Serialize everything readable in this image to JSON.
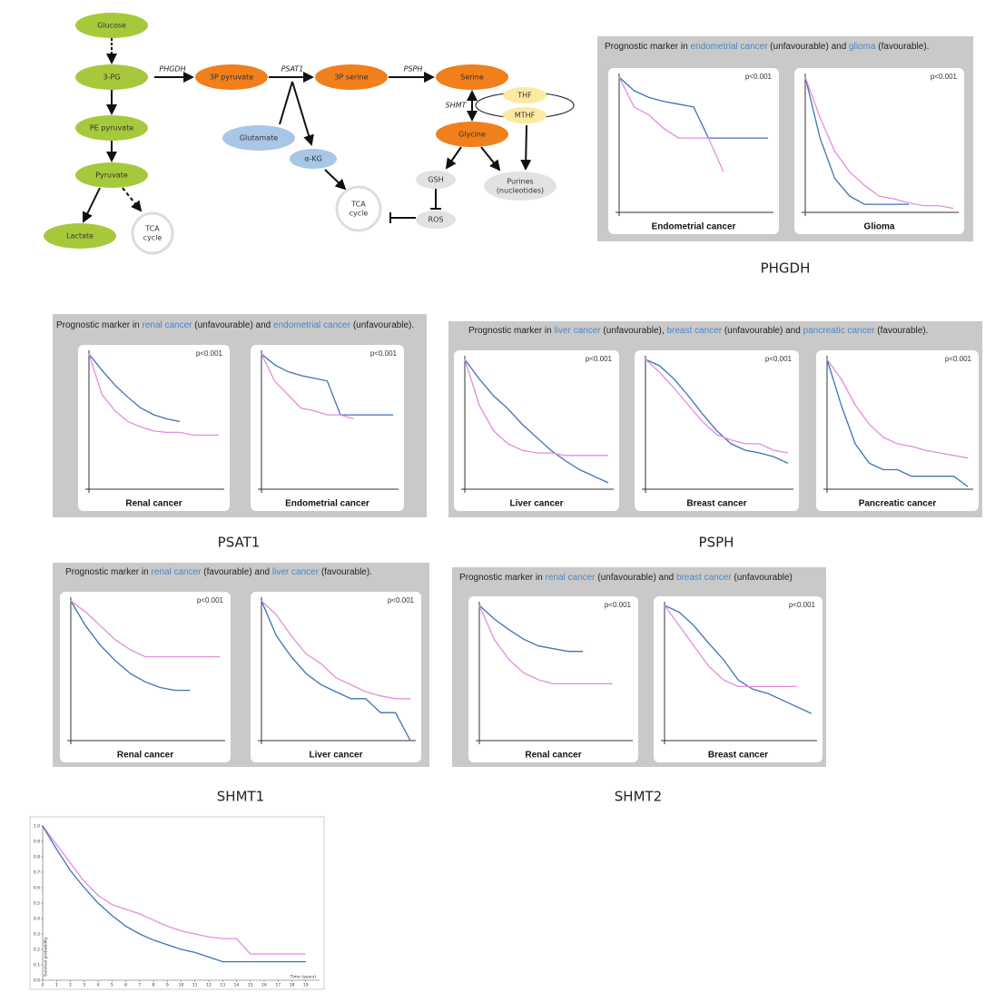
{
  "pathway": {
    "nodes": [
      {
        "label": "Glucose"
      },
      {
        "label": "3-PG"
      },
      {
        "label": "PE pyruvate"
      },
      {
        "label": "Pyruvate"
      },
      {
        "label": "Lactate"
      },
      {
        "label": [
          "TCA",
          "cycle"
        ]
      },
      {
        "label": "3P pyruvate"
      },
      {
        "label": "3P serine"
      },
      {
        "label": "Serine"
      },
      {
        "label": "Glutamate"
      },
      {
        "label": "α-KG"
      },
      {
        "label": "Glycine"
      },
      {
        "label": "THF"
      },
      {
        "label": "MTHF"
      },
      {
        "label": "GSH"
      },
      {
        "label": "ROS"
      },
      {
        "label": [
          "Purines",
          "(nucleotides)"
        ]
      },
      {
        "label": [
          "TCA",
          "cycle"
        ]
      }
    ],
    "enzymes": [
      "PHGDH",
      "PSAT1",
      "PSPH",
      "SHMT"
    ]
  },
  "figures": [
    {
      "caption": "PHGDH",
      "highlight_color": "#4a86c5",
      "header": [
        "Prognostic marker in ",
        "endometrial cancer",
        " (unfavourable) and ",
        "glioma",
        " (favourable)."
      ],
      "panels": [
        {
          "pvalue": "p<0.001",
          "label": "Endometrial cancer",
          "x": [
            0,
            1,
            2,
            3,
            4,
            5,
            6,
            7,
            8,
            9,
            10
          ],
          "series": [
            {
              "color": "#3d72b8",
              "values": [
                1,
                0.9,
                0.85,
                0.82,
                0.8,
                0.78,
                0.55,
                0.55,
                0.55,
                0.55,
                0.55
              ]
            },
            {
              "color": "#e38de0",
              "values": [
                1,
                0.78,
                0.72,
                0.62,
                0.55,
                0.55,
                0.55,
                0.3,
                null,
                null,
                null
              ]
            }
          ]
        },
        {
          "pvalue": "p<0.001",
          "label": "Glioma",
          "x": [
            0,
            1,
            2,
            3,
            4,
            5,
            6,
            7,
            8,
            9,
            10
          ],
          "series": [
            {
              "color": "#3d72b8",
              "values": [
                1,
                0.55,
                0.25,
                0.12,
                0.06,
                0.06,
                0.06,
                0.06,
                null,
                null,
                null
              ]
            },
            {
              "color": "#e38de0",
              "values": [
                1,
                0.7,
                0.45,
                0.3,
                0.2,
                0.12,
                0.1,
                0.07,
                0.05,
                0.05,
                0.03
              ]
            }
          ]
        }
      ]
    },
    {
      "caption": "PSAT1",
      "highlight_color": "#4a86c5",
      "header": [
        "Prognostic marker in ",
        "renal cancer",
        " (unfavourable) and ",
        "endometrial cancer",
        " (unfavourable)."
      ],
      "panels": [
        {
          "pvalue": "p<0.001",
          "label": "Renal cancer",
          "x": [
            0,
            1,
            2,
            3,
            4,
            5,
            6,
            7,
            8,
            9,
            10
          ],
          "series": [
            {
              "color": "#3d72b8",
              "values": [
                1,
                0.88,
                0.77,
                0.68,
                0.6,
                0.55,
                0.52,
                0.5,
                null,
                null,
                null
              ]
            },
            {
              "color": "#e38de0",
              "values": [
                1,
                0.7,
                0.58,
                0.5,
                0.46,
                0.43,
                0.42,
                0.42,
                0.4,
                0.4,
                0.4
              ]
            }
          ]
        },
        {
          "pvalue": "p<0.001",
          "label": "Endometrial cancer",
          "x": [
            0,
            1,
            2,
            3,
            4,
            5,
            6,
            7,
            8,
            9,
            10
          ],
          "series": [
            {
              "color": "#3d72b8",
              "values": [
                1,
                0.92,
                0.87,
                0.84,
                0.82,
                0.8,
                0.55,
                0.55,
                0.55,
                0.55,
                0.55
              ]
            },
            {
              "color": "#e38de0",
              "values": [
                1,
                0.8,
                0.7,
                0.6,
                0.58,
                0.55,
                0.55,
                0.52,
                null,
                null,
                null
              ]
            }
          ]
        }
      ]
    },
    {
      "caption": "PSPH",
      "highlight_color": "#4a86c5",
      "header": [
        "Prognostic marker in ",
        "liver cancer",
        " (unfavourable), ",
        "breast cancer",
        " (unfavourable) and ",
        "pancreatic cancer",
        " (favourable)."
      ],
      "panels": [
        {
          "pvalue": "p<0.001",
          "label": "Liver cancer",
          "x": [
            0,
            1,
            2,
            3,
            4,
            5,
            6,
            7,
            8,
            9,
            10
          ],
          "series": [
            {
              "color": "#3d72b8",
              "values": [
                1,
                0.85,
                0.72,
                0.62,
                0.5,
                0.4,
                0.3,
                0.22,
                0.15,
                0.1,
                0.05
              ]
            },
            {
              "color": "#e38de0",
              "values": [
                1,
                0.65,
                0.45,
                0.35,
                0.3,
                0.28,
                0.28,
                0.26,
                0.26,
                0.26,
                0.26
              ]
            }
          ]
        },
        {
          "pvalue": "p<0.001",
          "label": "Breast cancer",
          "x": [
            0,
            1,
            2,
            3,
            4,
            5,
            6,
            7,
            8,
            9,
            10
          ],
          "series": [
            {
              "color": "#3d72b8",
              "values": [
                1,
                0.95,
                0.85,
                0.72,
                0.58,
                0.45,
                0.35,
                0.3,
                0.28,
                0.25,
                0.2
              ]
            },
            {
              "color": "#e38de0",
              "values": [
                1,
                0.9,
                0.78,
                0.65,
                0.52,
                0.42,
                0.38,
                0.35,
                0.35,
                0.3,
                0.28
              ]
            }
          ]
        },
        {
          "pvalue": "p<0.001",
          "label": "Pancreatic cancer",
          "x": [
            0,
            1,
            2,
            3,
            4,
            5,
            6,
            7,
            8,
            9,
            10
          ],
          "series": [
            {
              "color": "#3d72b8",
              "values": [
                1,
                0.65,
                0.35,
                0.2,
                0.15,
                0.15,
                0.1,
                0.1,
                0.1,
                0.1,
                0.02
              ]
            },
            {
              "color": "#e38de0",
              "values": [
                1,
                0.85,
                0.65,
                0.5,
                0.4,
                0.35,
                0.33,
                0.3,
                0.28,
                0.26,
                0.24
              ]
            }
          ]
        }
      ]
    },
    {
      "caption": "SHMT1",
      "highlight_color": "#4a86c5",
      "header": [
        "Prognostic marker in ",
        "renal cancer",
        " (favourable) and ",
        "liver cancer",
        " (favourable)."
      ],
      "panels": [
        {
          "pvalue": "p<0.001",
          "label": "Renal cancer",
          "x": [
            0,
            1,
            2,
            3,
            4,
            5,
            6,
            7,
            8,
            9,
            10
          ],
          "series": [
            {
              "color": "#3d72b8",
              "values": [
                1,
                0.82,
                0.68,
                0.57,
                0.48,
                0.42,
                0.38,
                0.36,
                0.36,
                null,
                null
              ]
            },
            {
              "color": "#e38de0",
              "values": [
                1,
                0.92,
                0.82,
                0.72,
                0.65,
                0.6,
                0.6,
                0.6,
                0.6,
                0.6,
                0.6
              ]
            }
          ]
        },
        {
          "pvalue": "p<0.001",
          "label": "Liver cancer",
          "x": [
            0,
            1,
            2,
            3,
            4,
            5,
            6,
            7,
            8,
            9,
            10
          ],
          "series": [
            {
              "color": "#3d72b8",
              "values": [
                1,
                0.75,
                0.6,
                0.48,
                0.4,
                0.35,
                0.3,
                0.3,
                0.2,
                0.2,
                0
              ]
            },
            {
              "color": "#e38de0",
              "values": [
                1,
                0.9,
                0.75,
                0.62,
                0.55,
                0.45,
                0.4,
                0.35,
                0.32,
                0.3,
                0.3
              ]
            }
          ]
        }
      ]
    },
    {
      "caption": "SHMT2",
      "highlight_color": "#4a86c5",
      "header": [
        "Prognostic marker in ",
        "renal cancer",
        " (unfavourable) and ",
        "breast cancer",
        " (unfavourable)"
      ],
      "panels": [
        {
          "pvalue": "p<0.001",
          "label": "Renal cancer",
          "x": [
            0,
            1,
            2,
            3,
            4,
            5,
            6,
            7,
            8,
            9,
            10
          ],
          "series": [
            {
              "color": "#3d72b8",
              "values": [
                1,
                0.9,
                0.82,
                0.75,
                0.7,
                0.68,
                0.66,
                0.66,
                null,
                null,
                null
              ]
            },
            {
              "color": "#e38de0",
              "values": [
                1,
                0.75,
                0.6,
                0.5,
                0.45,
                0.42,
                0.42,
                0.42,
                0.42,
                0.42,
                null
              ]
            }
          ]
        },
        {
          "pvalue": "p<0.001",
          "label": "Breast cancer",
          "x": [
            0,
            1,
            2,
            3,
            4,
            5,
            6,
            7,
            8,
            9,
            10
          ],
          "series": [
            {
              "color": "#3d72b8",
              "values": [
                1,
                0.95,
                0.85,
                0.72,
                0.6,
                0.45,
                0.38,
                0.35,
                0.3,
                0.25,
                0.2
              ]
            },
            {
              "color": "#e38de0",
              "values": [
                1,
                0.85,
                0.7,
                0.55,
                0.45,
                0.4,
                0.4,
                0.4,
                0.4,
                0.4,
                null
              ]
            }
          ]
        }
      ]
    }
  ],
  "chart_data": {
    "type": "line",
    "x_label": "Time (years)",
    "y_label": "Survival probability",
    "x": [
      0,
      1,
      2,
      3,
      4,
      5,
      6,
      7,
      8,
      9,
      10,
      11,
      12,
      13,
      14,
      15,
      16,
      17,
      18,
      19
    ],
    "series": [
      {
        "color": "#e38de0",
        "values": [
          1,
          0.88,
          0.76,
          0.64,
          0.55,
          0.49,
          0.46,
          0.43,
          0.39,
          0.35,
          0.32,
          0.3,
          0.28,
          0.27,
          0.27,
          0.17,
          0.17,
          0.17,
          0.17,
          0.17
        ]
      },
      {
        "color": "#3d72b8",
        "values": [
          1,
          0.85,
          0.71,
          0.6,
          0.5,
          0.42,
          0.35,
          0.3,
          0.26,
          0.23,
          0.2,
          0.18,
          0.15,
          0.12,
          0.12,
          0.12,
          0.12,
          0.12,
          0.12,
          0.12
        ]
      }
    ],
    "xlim": [
      0,
      20
    ],
    "ylim": [
      0,
      1
    ],
    "xticks": [
      0,
      1,
      2,
      3,
      4,
      5,
      6,
      7,
      8,
      9,
      10,
      11,
      12,
      13,
      14,
      15,
      16,
      17,
      18,
      19
    ],
    "yticks": [
      {
        "value": 0,
        "label": "0.0"
      },
      0.1,
      0.2,
      0.3,
      0.4,
      0.5,
      0.6,
      0.7,
      0.8,
      0.9,
      {
        "value": 1,
        "label": "1.0"
      }
    ]
  }
}
